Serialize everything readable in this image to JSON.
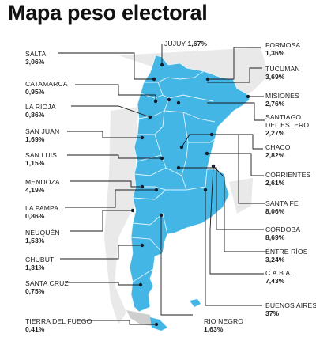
{
  "title": "Mapa peso electoral",
  "colors": {
    "province_fill": "#43b6e6",
    "province_border": "#e6f6fd",
    "neighbor_fill": "#e8e8e8",
    "leader_line": "#1a1a1a",
    "dot": "#0f1e2a"
  },
  "provinces": {
    "salta": {
      "name": "SALTA",
      "pct": "3,06%"
    },
    "jujuy": {
      "name": "JUJUY",
      "pct": "1,67%"
    },
    "formosa": {
      "name": "FORMOSA",
      "pct": "1,36%"
    },
    "tucuman": {
      "name": "TUCUMAN",
      "pct": "3,69%"
    },
    "catamarca": {
      "name": "CATAMARCA",
      "pct": "0,95%"
    },
    "misiones": {
      "name": "MISIONES",
      "pct": "2,76%"
    },
    "la_rioja": {
      "name": "LA RIOJA",
      "pct": "0,86%"
    },
    "santiago": {
      "name_line1": "SANTIAGO",
      "name_line2": "DEL ESTERO",
      "pct": "2,27%"
    },
    "san_juan": {
      "name": "SAN JUAN",
      "pct": "1,69%"
    },
    "chaco": {
      "name": "CHACO",
      "pct": "2,82%"
    },
    "san_luis": {
      "name": "SAN LUIS",
      "pct": "1,15%"
    },
    "corrientes": {
      "name": "CORRIENTES",
      "pct": "2,61%"
    },
    "mendoza": {
      "name": "MENDOZA",
      "pct": "4,19%"
    },
    "santa_fe": {
      "name": "SANTA FE",
      "pct": "8,06%"
    },
    "la_pampa": {
      "name": "LA PAMPA",
      "pct": "0,86%"
    },
    "cordoba": {
      "name": "CÓRDOBA",
      "pct": "8,69%"
    },
    "neuquen": {
      "name": "NEUQUÉN",
      "pct": "1,53%"
    },
    "entre_rios": {
      "name": "ENTRE RÍOS",
      "pct": "3,24%"
    },
    "chubut": {
      "name": "CHUBUT",
      "pct": "1,31%"
    },
    "caba": {
      "name": "C.A.B.A.",
      "pct": "7,43%"
    },
    "santa_cruz": {
      "name": "SANTA CRUZ",
      "pct": "0,75%"
    },
    "buenos_aires": {
      "name": "BUENOS AIRES",
      "pct": "37%"
    },
    "tierra_del_fuego": {
      "name": "TIERRA DEL FUEGO",
      "pct": "0,41%"
    },
    "rio_negro": {
      "name": "RIO NEGRO",
      "pct": "1,63%"
    }
  }
}
